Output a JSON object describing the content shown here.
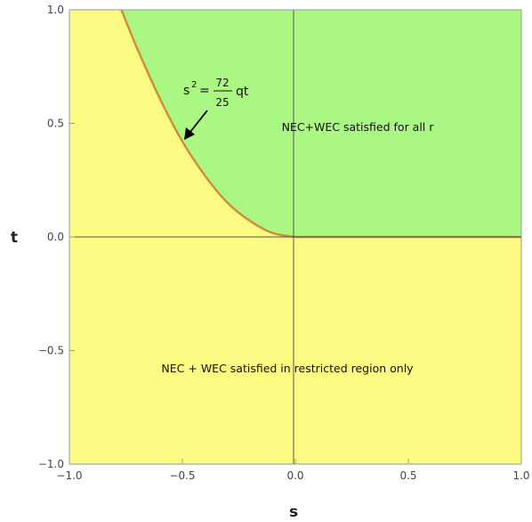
{
  "chart_data": {
    "type": "area",
    "title": "",
    "xlabel": "s",
    "ylabel": "t",
    "xlim": [
      -1.0,
      1.0
    ],
    "ylim": [
      -1.0,
      1.0
    ],
    "x_ticks": [
      "−1.0",
      "−0.5",
      "0.0",
      "0.5",
      "1.0"
    ],
    "y_ticks": [
      "1.0",
      "0.5",
      "0.0",
      "−0.5",
      "−1.0"
    ],
    "grid": false,
    "boundary_curve": {
      "points": [
        {
          "s": -0.77,
          "t": 1.0
        },
        {
          "s": -0.7,
          "t": 0.83
        },
        {
          "s": -0.6,
          "t": 0.61
        },
        {
          "s": -0.5,
          "t": 0.42
        },
        {
          "s": -0.4,
          "t": 0.27
        },
        {
          "s": -0.3,
          "t": 0.15
        },
        {
          "s": -0.2,
          "t": 0.07
        },
        {
          "s": -0.1,
          "t": 0.017
        },
        {
          "s": 0.0,
          "t": 0.0
        },
        {
          "s": 1.0,
          "t": 0.0
        }
      ],
      "color": "#d08a3c",
      "label": {
        "lhs_base": "s",
        "lhs_exp": "2",
        "equals": "=",
        "numerator": "72",
        "denominator": "25",
        "rhs": "qt"
      }
    },
    "regions": [
      {
        "label": "NEC+WEC satisfied for all r",
        "color": "#aaf783"
      },
      {
        "label": "NEC + WEC satisfied in restricted region only",
        "color": "#fbfb84"
      }
    ]
  }
}
